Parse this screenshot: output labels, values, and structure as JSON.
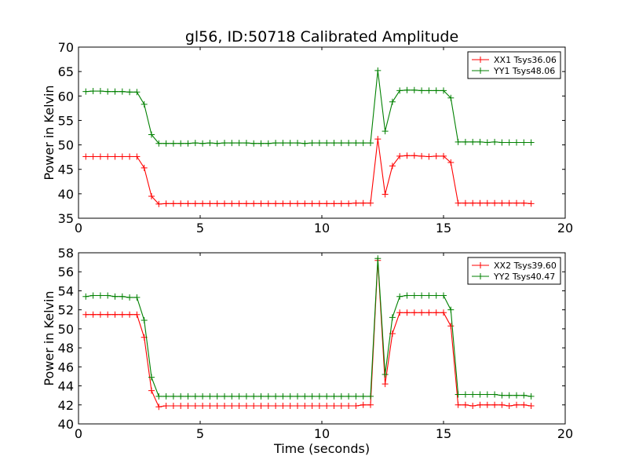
{
  "figure_title": "gl56, ID:50718 Calibrated Amplitude",
  "colors": {
    "red": "#ff0000",
    "green": "#008000"
  },
  "chart_data": [
    {
      "type": "line",
      "title": "gl56, ID:50718 Calibrated Amplitude",
      "xlabel": "",
      "ylabel": "Power in Kelvin",
      "xlim": [
        0,
        20
      ],
      "ylim": [
        35,
        70
      ],
      "xticks": [
        0,
        5,
        10,
        15,
        20
      ],
      "yticks": [
        35,
        40,
        45,
        50,
        55,
        60,
        65,
        70
      ],
      "grid": false,
      "legend_position": "top-right",
      "x": [
        0.3,
        0.6,
        0.9,
        1.2,
        1.5,
        1.8,
        2.1,
        2.4,
        2.7,
        3.0,
        3.3,
        3.6,
        3.9,
        4.2,
        4.5,
        4.8,
        5.1,
        5.4,
        5.7,
        6.0,
        6.3,
        6.6,
        6.9,
        7.2,
        7.5,
        7.8,
        8.1,
        8.4,
        8.7,
        9.0,
        9.3,
        9.6,
        9.9,
        10.2,
        10.5,
        10.8,
        11.1,
        11.4,
        11.7,
        12.0,
        12.3,
        12.6,
        12.9,
        13.2,
        13.5,
        13.8,
        14.1,
        14.4,
        14.7,
        15.0,
        15.3,
        15.6,
        15.9,
        16.2,
        16.5,
        16.8,
        17.1,
        17.4,
        17.7,
        18.0,
        18.3,
        18.6
      ],
      "series": [
        {
          "name": "XX1 Tsys36.06",
          "color": "#ff0000",
          "values": [
            47.6,
            47.6,
            47.6,
            47.6,
            47.6,
            47.6,
            47.6,
            47.6,
            45.3,
            39.5,
            37.9,
            38.0,
            38.0,
            38.0,
            38.0,
            38.0,
            38.0,
            38.0,
            38.0,
            38.0,
            38.0,
            38.0,
            38.0,
            38.0,
            38.0,
            38.0,
            38.0,
            38.0,
            38.0,
            38.0,
            38.0,
            38.0,
            38.0,
            38.0,
            38.0,
            38.0,
            38.0,
            38.1,
            38.1,
            38.1,
            51.2,
            39.9,
            45.7,
            47.7,
            47.8,
            47.8,
            47.7,
            47.6,
            47.7,
            47.7,
            46.4,
            38.1,
            38.1,
            38.1,
            38.1,
            38.1,
            38.1,
            38.1,
            38.1,
            38.1,
            38.1,
            38.0
          ]
        },
        {
          "name": "YY1 Tsys48.06",
          "color": "#008000",
          "values": [
            60.9,
            61.0,
            61.0,
            60.9,
            60.9,
            60.9,
            60.8,
            60.8,
            58.3,
            52.1,
            50.3,
            50.3,
            50.3,
            50.3,
            50.3,
            50.4,
            50.3,
            50.4,
            50.3,
            50.4,
            50.4,
            50.4,
            50.4,
            50.3,
            50.3,
            50.3,
            50.4,
            50.4,
            50.4,
            50.4,
            50.3,
            50.4,
            50.4,
            50.4,
            50.4,
            50.4,
            50.4,
            50.4,
            50.4,
            50.4,
            65.2,
            52.8,
            58.8,
            61.1,
            61.2,
            61.2,
            61.1,
            61.1,
            61.1,
            61.1,
            59.6,
            50.6,
            50.6,
            50.6,
            50.6,
            50.5,
            50.6,
            50.5,
            50.5,
            50.5,
            50.5,
            50.5
          ]
        }
      ]
    },
    {
      "type": "line",
      "title": "",
      "xlabel": "Time (seconds)",
      "ylabel": "Power in Kelvin",
      "xlim": [
        0,
        20
      ],
      "ylim": [
        40,
        58
      ],
      "xticks": [
        0,
        5,
        10,
        15,
        20
      ],
      "yticks": [
        40,
        42,
        44,
        46,
        48,
        50,
        52,
        54,
        56,
        58
      ],
      "grid": false,
      "legend_position": "top-right",
      "x": [
        0.3,
        0.6,
        0.9,
        1.2,
        1.5,
        1.8,
        2.1,
        2.4,
        2.7,
        3.0,
        3.3,
        3.6,
        3.9,
        4.2,
        4.5,
        4.8,
        5.1,
        5.4,
        5.7,
        6.0,
        6.3,
        6.6,
        6.9,
        7.2,
        7.5,
        7.8,
        8.1,
        8.4,
        8.7,
        9.0,
        9.3,
        9.6,
        9.9,
        10.2,
        10.5,
        10.8,
        11.1,
        11.4,
        11.7,
        12.0,
        12.3,
        12.6,
        12.9,
        13.2,
        13.5,
        13.8,
        14.1,
        14.4,
        14.7,
        15.0,
        15.3,
        15.6,
        15.9,
        16.2,
        16.5,
        16.8,
        17.1,
        17.4,
        17.7,
        18.0,
        18.3,
        18.6
      ],
      "series": [
        {
          "name": "XX2 Tsys39.60",
          "color": "#ff0000",
          "values": [
            51.5,
            51.5,
            51.5,
            51.5,
            51.5,
            51.5,
            51.5,
            51.5,
            49.1,
            43.5,
            41.8,
            41.9,
            41.9,
            41.9,
            41.9,
            41.9,
            41.9,
            41.9,
            41.9,
            41.9,
            41.9,
            41.9,
            41.9,
            41.9,
            41.9,
            41.9,
            41.9,
            41.9,
            41.9,
            41.9,
            41.9,
            41.9,
            41.9,
            41.9,
            41.9,
            41.9,
            41.9,
            41.9,
            42.0,
            42.0,
            57.2,
            44.2,
            49.5,
            51.7,
            51.7,
            51.7,
            51.7,
            51.7,
            51.7,
            51.7,
            50.3,
            42.0,
            42.0,
            41.9,
            42.0,
            42.0,
            42.0,
            42.0,
            41.9,
            42.0,
            42.0,
            41.9
          ]
        },
        {
          "name": "YY2 Tsys40.47",
          "color": "#008000",
          "values": [
            53.4,
            53.5,
            53.5,
            53.5,
            53.4,
            53.4,
            53.3,
            53.3,
            50.9,
            44.9,
            42.9,
            42.9,
            42.9,
            42.9,
            42.9,
            42.9,
            42.9,
            42.9,
            42.9,
            42.9,
            42.9,
            42.9,
            42.9,
            42.9,
            42.9,
            42.9,
            42.9,
            42.9,
            42.9,
            42.9,
            42.9,
            42.9,
            42.9,
            42.9,
            42.9,
            42.9,
            42.9,
            42.9,
            42.9,
            42.9,
            57.4,
            45.2,
            51.2,
            53.4,
            53.5,
            53.5,
            53.5,
            53.5,
            53.5,
            53.5,
            52.0,
            43.1,
            43.1,
            43.1,
            43.1,
            43.1,
            43.1,
            43.0,
            43.0,
            43.0,
            43.0,
            42.9
          ]
        }
      ]
    }
  ]
}
